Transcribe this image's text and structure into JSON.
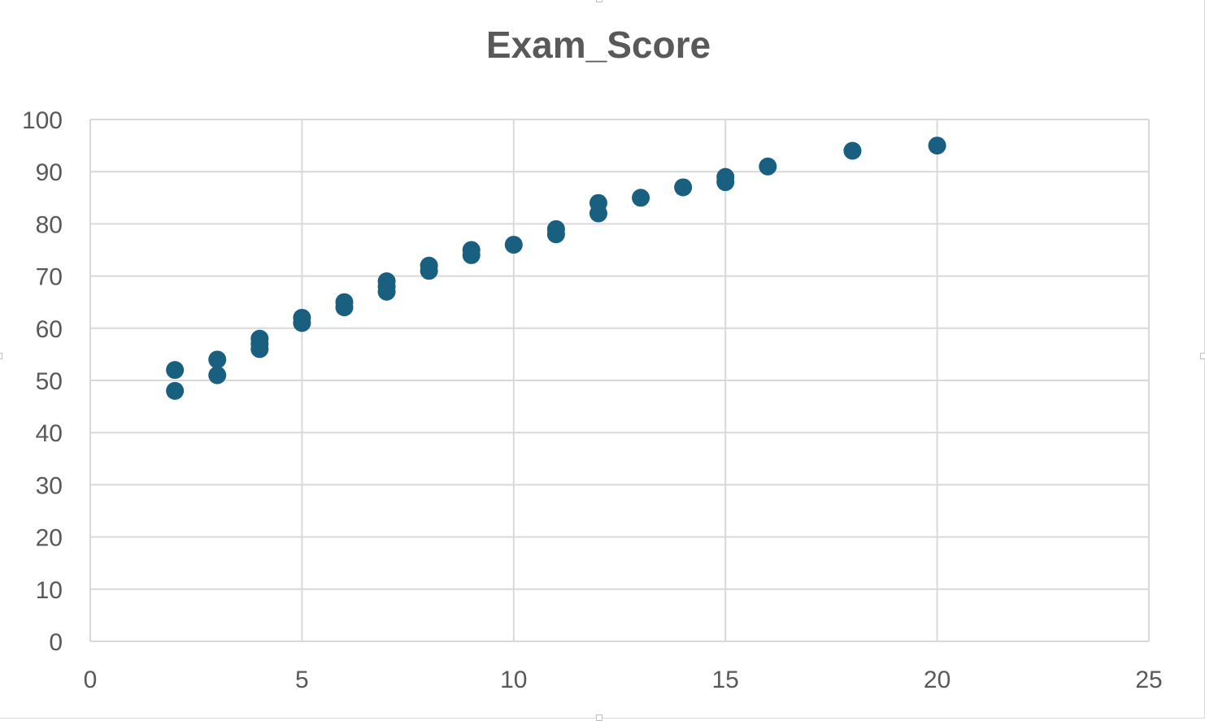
{
  "colors": {
    "marker": "#185f80",
    "gridline": "#d9d9d9",
    "axis_text": "#595959",
    "title_text": "#595959"
  },
  "chart_data": {
    "type": "scatter",
    "title": "Exam_Score",
    "xlabel": "",
    "ylabel": "",
    "xlim": [
      0,
      25
    ],
    "ylim": [
      0,
      100
    ],
    "x_ticks": [
      0,
      5,
      10,
      15,
      20,
      25
    ],
    "y_ticks": [
      0,
      10,
      20,
      30,
      40,
      50,
      60,
      70,
      80,
      90,
      100
    ],
    "grid": true,
    "legend": "none",
    "series": [
      {
        "points": [
          {
            "x": 2,
            "y": 48
          },
          {
            "x": 2,
            "y": 52
          },
          {
            "x": 3,
            "y": 51
          },
          {
            "x": 3,
            "y": 54
          },
          {
            "x": 4,
            "y": 56
          },
          {
            "x": 4,
            "y": 57
          },
          {
            "x": 4,
            "y": 58
          },
          {
            "x": 5,
            "y": 61
          },
          {
            "x": 5,
            "y": 62
          },
          {
            "x": 6,
            "y": 64
          },
          {
            "x": 6,
            "y": 65
          },
          {
            "x": 7,
            "y": 67
          },
          {
            "x": 7,
            "y": 68
          },
          {
            "x": 7,
            "y": 69
          },
          {
            "x": 8,
            "y": 71
          },
          {
            "x": 8,
            "y": 72
          },
          {
            "x": 9,
            "y": 74
          },
          {
            "x": 9,
            "y": 75
          },
          {
            "x": 10,
            "y": 76
          },
          {
            "x": 11,
            "y": 78
          },
          {
            "x": 11,
            "y": 79
          },
          {
            "x": 12,
            "y": 82
          },
          {
            "x": 12,
            "y": 84
          },
          {
            "x": 13,
            "y": 85
          },
          {
            "x": 14,
            "y": 87
          },
          {
            "x": 15,
            "y": 88
          },
          {
            "x": 15,
            "y": 89
          },
          {
            "x": 16,
            "y": 91
          },
          {
            "x": 18,
            "y": 94
          },
          {
            "x": 20,
            "y": 95
          }
        ]
      }
    ]
  }
}
